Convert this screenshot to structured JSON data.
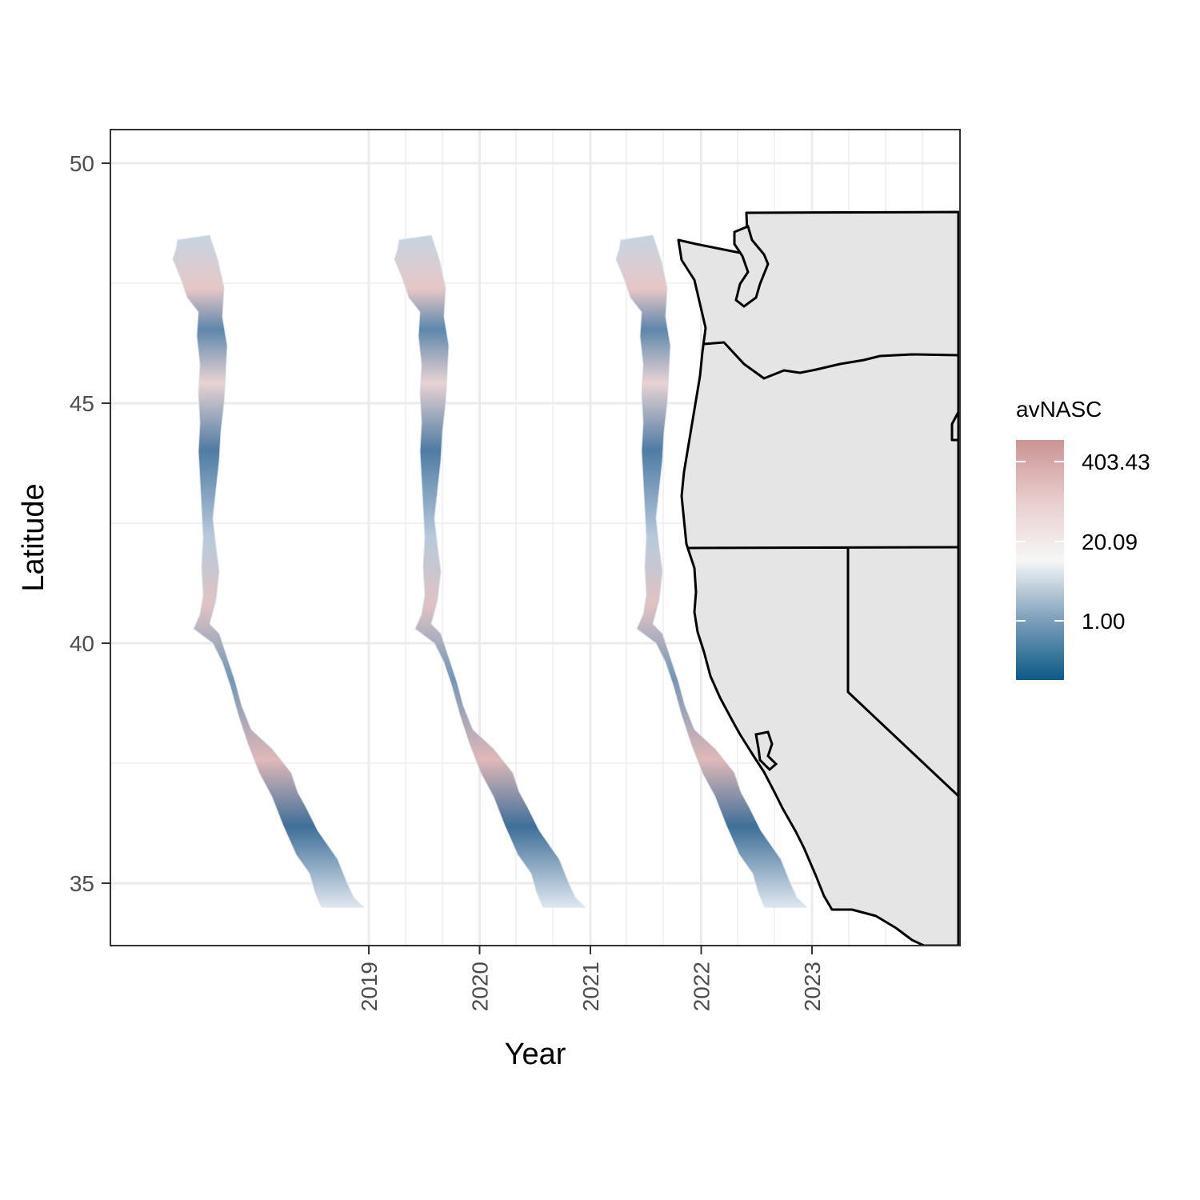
{
  "chart_data": {
    "type": "heatmap",
    "title": "",
    "xlabel": "Year",
    "ylabel": "Latitude",
    "x_ticks": [
      "2019",
      "2020",
      "2021",
      "2022",
      "2023"
    ],
    "y_ticks": [
      35,
      40,
      45,
      50
    ],
    "ylim": [
      33.7,
      50.7
    ],
    "grid": true,
    "legend": {
      "title": "avNASC",
      "placement": "right",
      "scale": "log",
      "labels": [
        "403.43",
        "20.09",
        "1.00"
      ],
      "colors": {
        "low": "#0b5a86",
        "mid": "#f7f7f7",
        "high": "#cc9393"
      }
    },
    "panels": [
      {
        "year": "2019",
        "lat_range": [
          34.5,
          48.5
        ]
      },
      {
        "year": "2020",
        "lat_range": [
          34.5,
          48.5
        ]
      },
      {
        "year": "2021",
        "lat_range": [
          34.5,
          48.5
        ]
      }
    ],
    "basemap": {
      "fill": "#e5e5e5",
      "border": "#000000"
    }
  }
}
